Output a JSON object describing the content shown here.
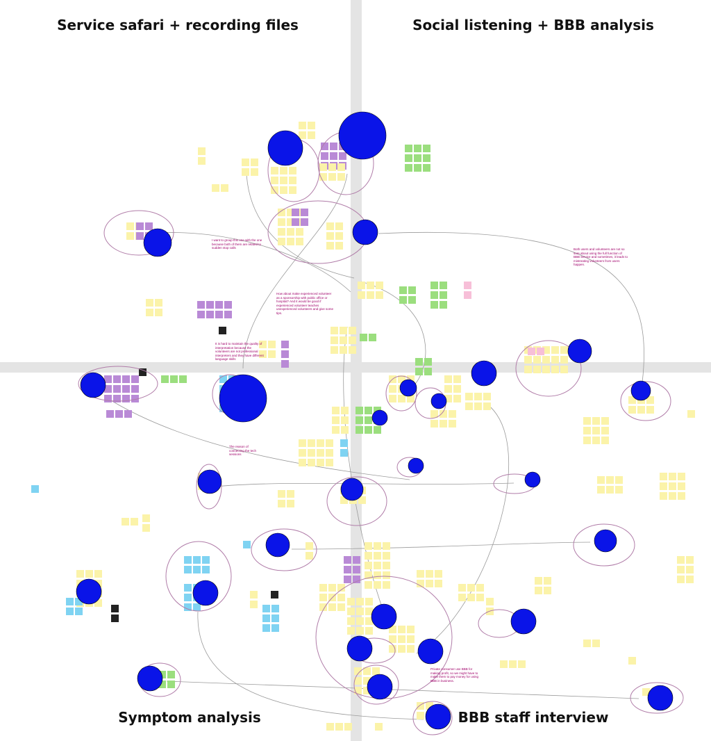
{
  "quadrants": {
    "top_left": "Service safari + recording files",
    "top_right": "Social listening + BBB analysis",
    "bottom_left": "Symptom analysis",
    "bottom_right": "BBB staff interview"
  },
  "annotations": [
    "I want to group this one with the one because both of them are related to sudden stop calls",
    "How about make experienced volunteer as a sponsorship with public office or hospital? And it would be good if experienced volunteer teaches unexperienced volunteers and give some tips.",
    "It is hard to maintain the quality of interpretation because the volunteers are not professional interpreters and they have different language skills",
    "The reason of connecting the tech sessions",
    "Both users and volunteers are not so sure about using the full function of BBB service and sometimes, it leads to mistreating volunteers from users happen.",
    "Private consumer use BBB for making profit, so we might have to make them to pay money for using BBB in business."
  ]
}
